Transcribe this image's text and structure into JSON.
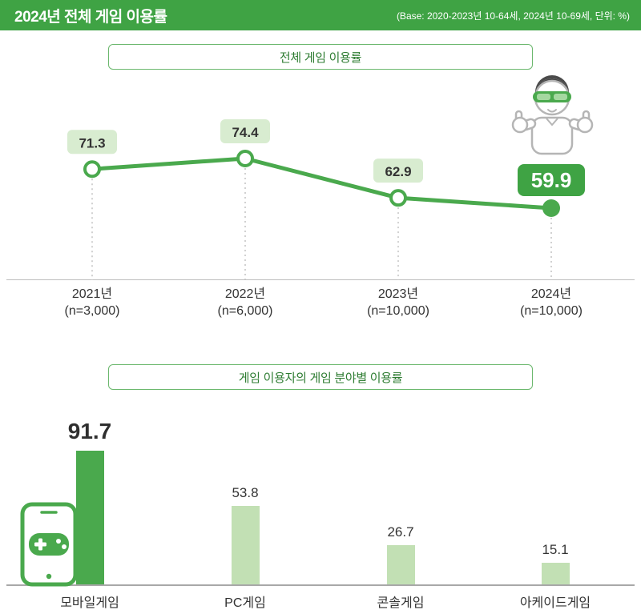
{
  "header": {
    "title": "2024년 전체 게임 이용률",
    "base_note": "(Base: 2020-2023년 10-64세, 2024년 10-69세, 단위: %)"
  },
  "colors": {
    "header_bg": "#3fa344",
    "accent_green": "#3fa344",
    "line_green": "#4aa94d",
    "label_bg": "#d8ecd0",
    "bar_highlight": "#4aa94d",
    "bar_light": "#c2e0b4",
    "axis_gray": "#a8a8a8",
    "dotted_gray": "#c2c2c2",
    "text_dark": "#333333"
  },
  "chart_data": [
    {
      "type": "line",
      "title": "전체 게임 이용률",
      "categories": [
        "2021년",
        "2022년",
        "2023년",
        "2024년"
      ],
      "sub_categories": [
        "(n=3,000)",
        "(n=6,000)",
        "(n=10,000)",
        "(n=10,000)"
      ],
      "values": [
        71.3,
        74.4,
        62.9,
        59.9
      ],
      "highlight_index": 3,
      "ylim": [
        0,
        100
      ],
      "ylabel": "",
      "xlabel": ""
    },
    {
      "type": "bar",
      "title": "게임 이용자의 게임 분야별 이용률",
      "categories": [
        "모바일게임",
        "PC게임",
        "콘솔게임",
        "아케이드게임"
      ],
      "values": [
        91.7,
        53.8,
        26.7,
        15.1
      ],
      "highlight_index": 0,
      "ylim": [
        0,
        100
      ],
      "ylabel": "",
      "xlabel": ""
    }
  ]
}
